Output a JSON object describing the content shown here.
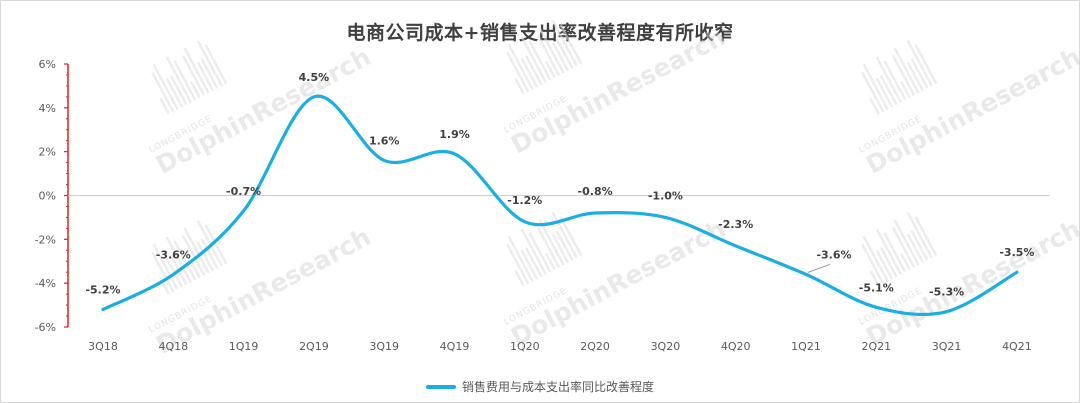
{
  "chart_data": {
    "type": "line",
    "title": "电商公司成本+销售支出率改善程度有所收窄",
    "categories": [
      "3Q18",
      "4Q18",
      "1Q19",
      "2Q19",
      "3Q19",
      "4Q19",
      "1Q20",
      "2Q20",
      "3Q20",
      "4Q20",
      "1Q21",
      "2Q21",
      "3Q21",
      "4Q21"
    ],
    "series": [
      {
        "name": "销售费用与成本支出率同比改善程度",
        "values": [
          -5.2,
          -3.6,
          -0.7,
          4.5,
          1.6,
          1.9,
          -1.2,
          -0.8,
          -1.0,
          -2.3,
          -3.6,
          -5.1,
          -5.3,
          -3.5
        ],
        "color": "#1aaee5"
      }
    ],
    "data_labels": [
      "-5.2%",
      "-3.6%",
      "-0.7%",
      "4.5%",
      "1.6%",
      "1.9%",
      "-1.2%",
      "-0.8%",
      "-1.0%",
      "-2.3%",
      "-3.6%",
      "-5.1%",
      "-5.3%",
      "-3.5%"
    ],
    "ylim": [
      -6,
      6
    ],
    "yticks": [
      "-6%",
      "-4%",
      "-2%",
      "0%",
      "2%",
      "4%",
      "6%"
    ],
    "ytick_values": [
      -6,
      -4,
      -2,
      0,
      2,
      4,
      6
    ],
    "y_axis_color": "#e02020",
    "grid": false,
    "legend_position": "bottom",
    "watermark": {
      "brand_small": "LONGBRIDGE",
      "brand_big": "DolphinResearch"
    }
  }
}
